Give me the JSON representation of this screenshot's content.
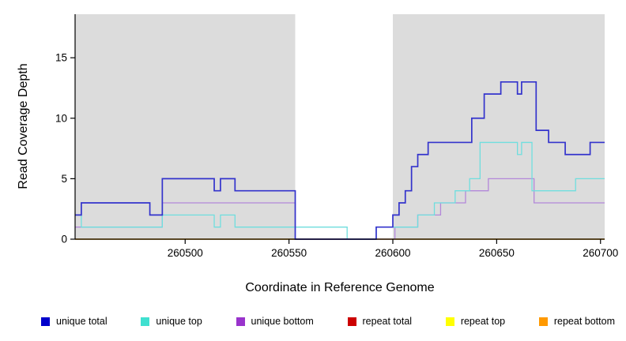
{
  "chart_data": {
    "type": "line",
    "title": "",
    "xlabel": "Coordinate in Reference Genome",
    "ylabel": "Read Coverage Depth",
    "xlim": [
      260447,
      260702
    ],
    "ylim": [
      0,
      18.6
    ],
    "x_ticks": [
      260500,
      260550,
      260600,
      260650,
      260700
    ],
    "y_ticks": [
      0,
      5,
      10,
      15
    ],
    "grid": false,
    "legend_position": "bottom",
    "background_bands": {
      "color": "#dcdcdc",
      "ranges": [
        [
          260447,
          260553
        ],
        [
          260600,
          260702
        ]
      ]
    },
    "series": [
      {
        "name": "unique total",
        "legend_color": "#0000cc",
        "line_color": "#3333cc",
        "width": 1.7,
        "z": 6,
        "points": [
          [
            260447,
            2
          ],
          [
            260450,
            3
          ],
          [
            260483,
            2
          ],
          [
            260489,
            5
          ],
          [
            260514,
            4
          ],
          [
            260517,
            5
          ],
          [
            260524,
            4
          ],
          [
            260553,
            0
          ],
          [
            260592,
            1
          ],
          [
            260600,
            2
          ],
          [
            260603,
            3
          ],
          [
            260606,
            4
          ],
          [
            260609,
            6
          ],
          [
            260612,
            7
          ],
          [
            260617,
            8
          ],
          [
            260638,
            10
          ],
          [
            260644,
            12
          ],
          [
            260652,
            13
          ],
          [
            260660,
            12
          ],
          [
            260662,
            13
          ],
          [
            260669,
            9
          ],
          [
            260675,
            8
          ],
          [
            260683,
            7
          ],
          [
            260695,
            8
          ],
          [
            260702,
            8
          ]
        ]
      },
      {
        "name": "unique top",
        "legend_color": "#40e0d0",
        "line_color": "#6fdede",
        "width": 1.3,
        "z": 5,
        "points": [
          [
            260447,
            2
          ],
          [
            260450,
            1
          ],
          [
            260489,
            2
          ],
          [
            260514,
            1
          ],
          [
            260517,
            2
          ],
          [
            260524,
            1
          ],
          [
            260578,
            0
          ],
          [
            260592,
            1
          ],
          [
            260612,
            2
          ],
          [
            260620,
            3
          ],
          [
            260630,
            4
          ],
          [
            260637,
            5
          ],
          [
            260642,
            8
          ],
          [
            260660,
            7
          ],
          [
            260662,
            8
          ],
          [
            260667,
            4
          ],
          [
            260688,
            5
          ],
          [
            260702,
            5
          ]
        ]
      },
      {
        "name": "unique bottom",
        "legend_color": "#9933cc",
        "line_color": "#b387d9",
        "width": 1.3,
        "z": 4,
        "points": [
          [
            260447,
            1
          ],
          [
            260489,
            3
          ],
          [
            260553,
            0
          ],
          [
            260601,
            1
          ],
          [
            260612,
            2
          ],
          [
            260623,
            3
          ],
          [
            260635,
            4
          ],
          [
            260646,
            5
          ],
          [
            260668,
            3
          ],
          [
            260702,
            3
          ]
        ]
      },
      {
        "name": "repeat total",
        "legend_color": "#cc0000",
        "line_color": "#cc0000",
        "width": 1.3,
        "z": 1,
        "points": [
          [
            260447,
            0
          ],
          [
            260702,
            0
          ]
        ]
      },
      {
        "name": "repeat top",
        "legend_color": "#ffff00",
        "line_color": "#ffff00",
        "width": 1.3,
        "z": 2,
        "points": [
          [
            260447,
            0
          ],
          [
            260702,
            0
          ]
        ]
      },
      {
        "name": "repeat bottom",
        "legend_color": "#ff9900",
        "line_color": "#ffa500",
        "width": 1.3,
        "z": 3,
        "points": [
          [
            260447,
            0
          ],
          [
            260702,
            0
          ]
        ]
      }
    ]
  }
}
